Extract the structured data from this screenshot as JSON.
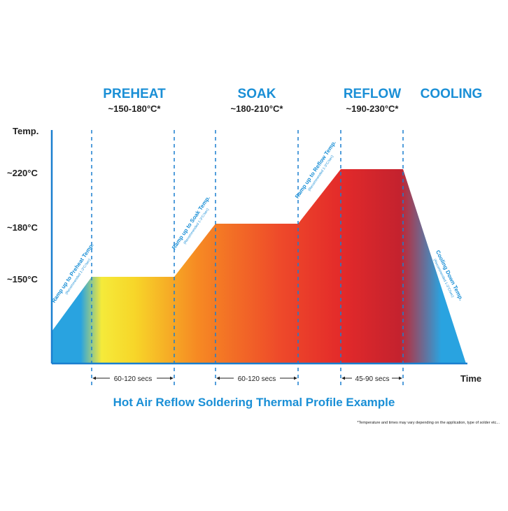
{
  "phases": [
    {
      "name": "PREHEAT",
      "range": "~150-180°C*"
    },
    {
      "name": "SOAK",
      "range": "~180-210°C*"
    },
    {
      "name": "REFLOW",
      "range": "~190-230°C*"
    },
    {
      "name": "COOLING"
    }
  ],
  "axis": {
    "y_title": "Temp.",
    "y_labels": [
      "~220°C",
      "~180°C",
      "~150°C"
    ],
    "x_title": "Time"
  },
  "ramps": [
    {
      "label": "Ramp up to Preheat Temp.",
      "note": "(Recommended 1-3°C/sec)"
    },
    {
      "label": "Ramp up to Soak Temp.",
      "note": "(Recommended 1-3°C/sec)"
    },
    {
      "label": "Ramp up to Reflow Temp.",
      "note": "(Recommended 1-3°C/sec)"
    },
    {
      "label": "Cooling Down Temp.",
      "note": "(Recommended 1-3°C/sec)"
    }
  ],
  "durations": [
    "60-120 secs",
    "60-120 secs",
    "45-90 secs"
  ],
  "title": "Hot Air Reflow Soldering Thermal Profile Example",
  "footnote": "*Temperature and times may vary depending on the application, type of solder etc..."
}
